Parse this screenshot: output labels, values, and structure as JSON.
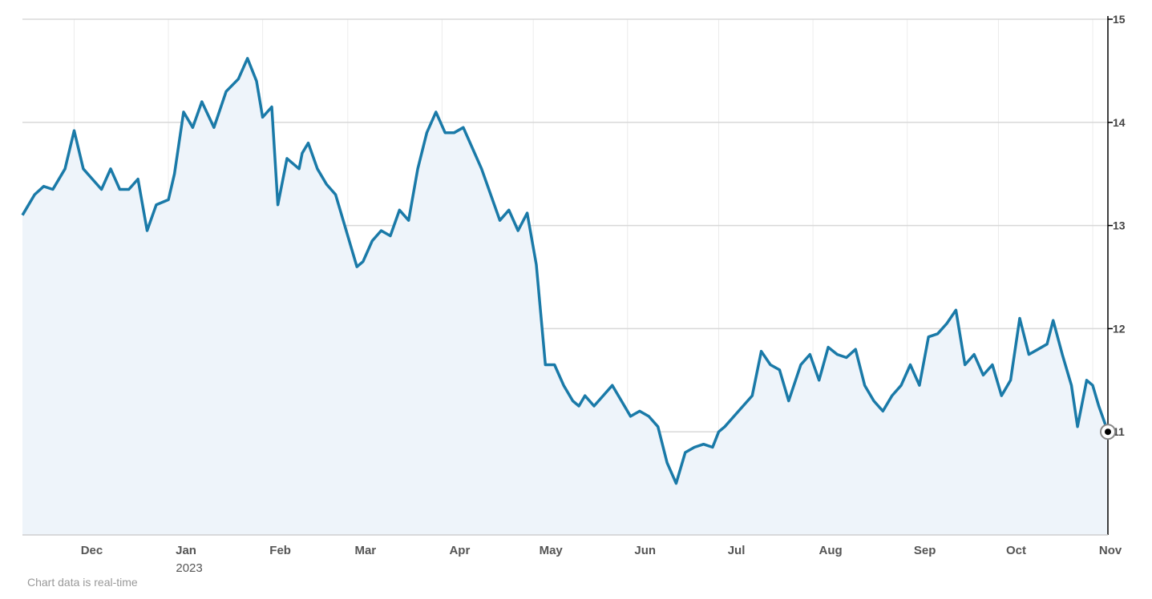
{
  "chart_data": {
    "type": "area",
    "title": "",
    "xlabel": "",
    "ylabel": "",
    "ylim": [
      10,
      15
    ],
    "x_range": [
      "2022-11-14",
      "2023-11-06"
    ],
    "y_ticks": [
      11,
      12,
      13,
      14,
      15
    ],
    "x_ticks": [
      {
        "label": "Dec",
        "sublabel": "",
        "date": "2022-12-01"
      },
      {
        "label": "Jan",
        "sublabel": "2023",
        "date": "2023-01-01"
      },
      {
        "label": "Feb",
        "sublabel": "",
        "date": "2023-02-01"
      },
      {
        "label": "Mar",
        "sublabel": "",
        "date": "2023-03-01"
      },
      {
        "label": "Apr",
        "sublabel": "",
        "date": "2023-04-01"
      },
      {
        "label": "May",
        "sublabel": "",
        "date": "2023-05-01"
      },
      {
        "label": "Jun",
        "sublabel": "",
        "date": "2023-06-01"
      },
      {
        "label": "Jul",
        "sublabel": "",
        "date": "2023-07-01"
      },
      {
        "label": "Aug",
        "sublabel": "",
        "date": "2023-08-01"
      },
      {
        "label": "Sep",
        "sublabel": "",
        "date": "2023-09-01"
      },
      {
        "label": "Oct",
        "sublabel": "",
        "date": "2023-10-01"
      },
      {
        "label": "Nov",
        "sublabel": "",
        "date": "2023-11-01"
      }
    ],
    "grid": true,
    "y_axis_position": "right",
    "line_color": "#1a7aa8",
    "fill_color": "#eef4fa",
    "series": [
      {
        "x": [
          "2022-11-14",
          "2022-11-16",
          "2022-11-18",
          "2022-11-21",
          "2022-11-24",
          "2022-11-28",
          "2022-12-01",
          "2022-12-04",
          "2022-12-07",
          "2022-12-10",
          "2022-12-13",
          "2022-12-16",
          "2022-12-19",
          "2022-12-22",
          "2022-12-25",
          "2022-12-28",
          "2023-01-01",
          "2023-01-03",
          "2023-01-06",
          "2023-01-09",
          "2023-01-12",
          "2023-01-16",
          "2023-01-20",
          "2023-01-24",
          "2023-01-27",
          "2023-01-30",
          "2023-02-01",
          "2023-02-04",
          "2023-02-06",
          "2023-02-09",
          "2023-02-13",
          "2023-02-14",
          "2023-02-16",
          "2023-02-19",
          "2023-02-22",
          "2023-02-25",
          "2023-03-01",
          "2023-03-04",
          "2023-03-06",
          "2023-03-09",
          "2023-03-12",
          "2023-03-15",
          "2023-03-18",
          "2023-03-21",
          "2023-03-24",
          "2023-03-27",
          "2023-03-30",
          "2023-04-02",
          "2023-04-05",
          "2023-04-08",
          "2023-04-11",
          "2023-04-14",
          "2023-04-17",
          "2023-04-20",
          "2023-04-23",
          "2023-04-26",
          "2023-04-29",
          "2023-05-02",
          "2023-05-05",
          "2023-05-08",
          "2023-05-11",
          "2023-05-14",
          "2023-05-16",
          "2023-05-18",
          "2023-05-21",
          "2023-05-24",
          "2023-05-27",
          "2023-05-30",
          "2023-06-02",
          "2023-06-05",
          "2023-06-08",
          "2023-06-11",
          "2023-06-14",
          "2023-06-17",
          "2023-06-20",
          "2023-06-23",
          "2023-06-26",
          "2023-06-29",
          "2023-07-01",
          "2023-07-03",
          "2023-07-06",
          "2023-07-09",
          "2023-07-12",
          "2023-07-15",
          "2023-07-18",
          "2023-07-21",
          "2023-07-24",
          "2023-07-28",
          "2023-07-31",
          "2023-08-03",
          "2023-08-06",
          "2023-08-09",
          "2023-08-12",
          "2023-08-15",
          "2023-08-18",
          "2023-08-21",
          "2023-08-24",
          "2023-08-27",
          "2023-08-30",
          "2023-09-02",
          "2023-09-05",
          "2023-09-08",
          "2023-09-11",
          "2023-09-14",
          "2023-09-17",
          "2023-09-20",
          "2023-09-23",
          "2023-09-26",
          "2023-09-29",
          "2023-10-02",
          "2023-10-05",
          "2023-10-08",
          "2023-10-11",
          "2023-10-14",
          "2023-10-17",
          "2023-10-19",
          "2023-10-22",
          "2023-10-25",
          "2023-10-27",
          "2023-10-30",
          "2023-11-01",
          "2023-11-03",
          "2023-11-06"
        ],
        "y": [
          13.1,
          13.2,
          13.3,
          13.38,
          13.35,
          13.55,
          13.92,
          13.55,
          13.45,
          13.35,
          13.55,
          13.35,
          13.35,
          13.45,
          12.95,
          13.2,
          13.25,
          13.5,
          14.1,
          13.95,
          14.2,
          13.95,
          14.3,
          14.42,
          14.62,
          14.4,
          14.05,
          14.15,
          13.2,
          13.65,
          13.55,
          13.7,
          13.8,
          13.55,
          13.4,
          13.3,
          12.9,
          12.6,
          12.65,
          12.85,
          12.95,
          12.9,
          13.15,
          13.05,
          13.55,
          13.9,
          14.1,
          13.9,
          13.9,
          13.95,
          13.75,
          13.55,
          13.3,
          13.05,
          13.15,
          12.95,
          13.12,
          12.62,
          11.65,
          11.65,
          11.45,
          11.3,
          11.25,
          11.35,
          11.25,
          11.35,
          11.45,
          11.3,
          11.15,
          11.2,
          11.15,
          11.05,
          10.7,
          10.5,
          10.8,
          10.85,
          10.88,
          10.85,
          11.0,
          11.05,
          11.15,
          11.25,
          11.35,
          11.78,
          11.65,
          11.6,
          11.3,
          11.65,
          11.75,
          11.5,
          11.82,
          11.75,
          11.72,
          11.8,
          11.45,
          11.3,
          11.2,
          11.35,
          11.45,
          11.65,
          11.45,
          11.92,
          11.95,
          12.05,
          12.18,
          11.65,
          11.75,
          11.55,
          11.65,
          11.35,
          11.5,
          12.1,
          11.75,
          11.8,
          11.85,
          12.08,
          11.75,
          11.45,
          11.05,
          11.5,
          11.45,
          11.25,
          11.0
        ]
      }
    ],
    "last_point": {
      "x": "2023-11-06",
      "y": 11.0
    },
    "note": "Chart data is real-time"
  }
}
